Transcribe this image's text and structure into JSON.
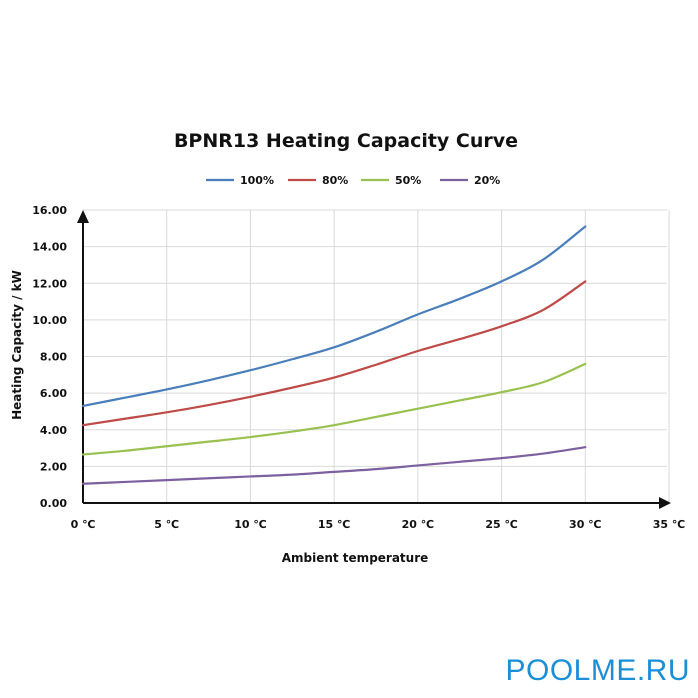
{
  "chart_data": {
    "type": "line",
    "title": "BPNR13 Heating Capacity Curve",
    "xlabel": "Ambient temperature",
    "ylabel": "Heating Capacity / kW",
    "xlim": [
      0,
      35
    ],
    "ylim": [
      0,
      16
    ],
    "x_ticks": [
      "0 ℃",
      "5 ℃",
      "10 ℃",
      "15 ℃",
      "20 ℃",
      "25 ℃",
      "30 ℃",
      "35 ℃"
    ],
    "y_ticks": [
      "0.00",
      "2.00",
      "4.00",
      "6.00",
      "8.00",
      "10.00",
      "12.00",
      "14.00",
      "16.00"
    ],
    "x": [
      0,
      2.5,
      5,
      7.5,
      10,
      12.5,
      15,
      17.5,
      20,
      22.5,
      25,
      27.5,
      30
    ],
    "series": [
      {
        "name": "100%",
        "color": "#4a7ebb",
        "values": [
          5.3,
          5.75,
          6.2,
          6.7,
          7.25,
          7.85,
          8.5,
          9.35,
          10.3,
          11.15,
          12.1,
          13.3,
          15.1
        ]
      },
      {
        "name": "80%",
        "color": "#be4b48",
        "values": [
          4.25,
          4.6,
          4.95,
          5.35,
          5.8,
          6.3,
          6.85,
          7.55,
          8.3,
          8.95,
          9.65,
          10.55,
          12.1
        ]
      },
      {
        "name": "50%",
        "color": "#98c150",
        "values": [
          2.65,
          2.85,
          3.1,
          3.35,
          3.6,
          3.9,
          4.25,
          4.7,
          5.15,
          5.6,
          6.05,
          6.6,
          7.6
        ]
      },
      {
        "name": "20%",
        "color": "#7d60a0",
        "values": [
          1.05,
          1.15,
          1.25,
          1.35,
          1.45,
          1.55,
          1.7,
          1.85,
          2.05,
          2.25,
          2.45,
          2.7,
          3.05
        ]
      }
    ],
    "grid": true,
    "legend_position": "top-center"
  },
  "watermark": {
    "text": "POOLME.RU",
    "color": "#1a8fd8"
  }
}
